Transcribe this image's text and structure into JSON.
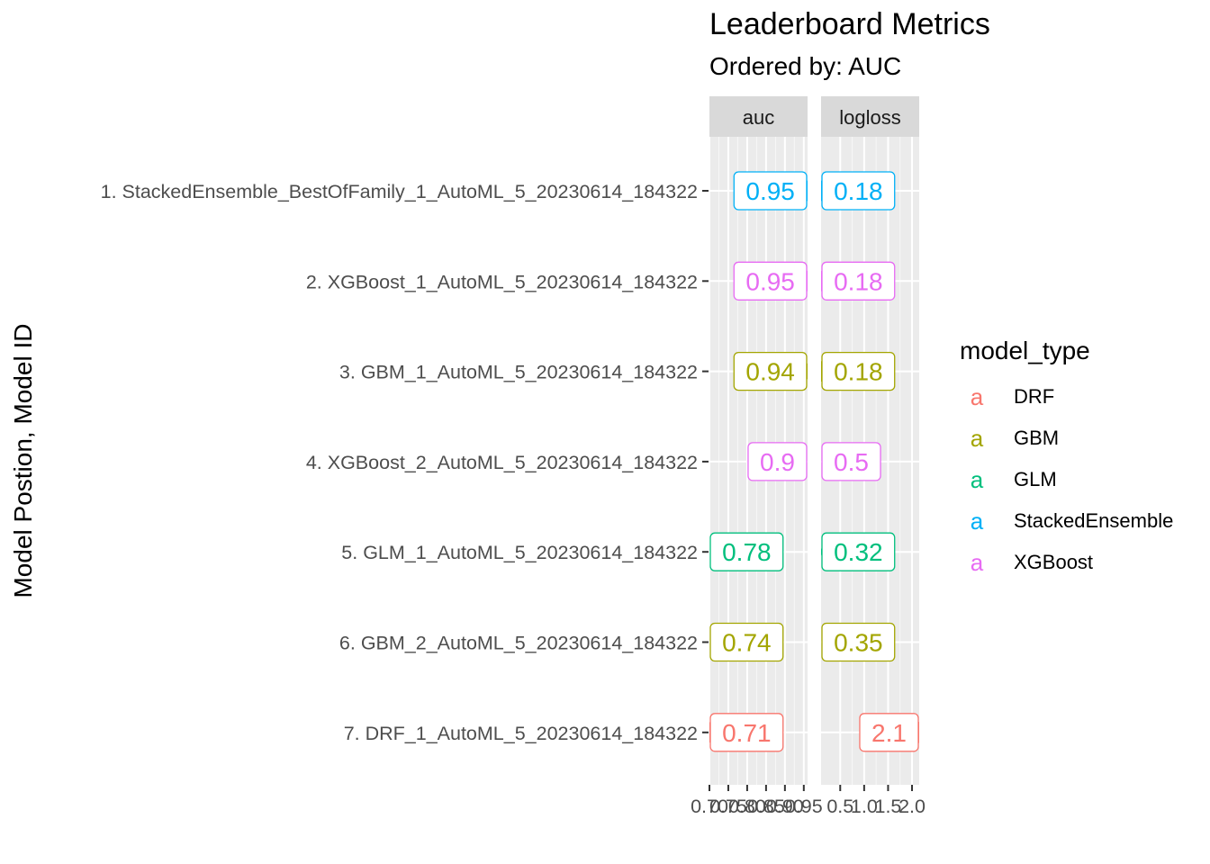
{
  "title": "Leaderboard Metrics",
  "subtitle": "Ordered by: AUC",
  "ylabel": "Model Postion, Model ID",
  "legend": {
    "title": "model_type",
    "key_glyph": "a",
    "items": [
      {
        "label": "DRF",
        "color": "#F8766D"
      },
      {
        "label": "GBM",
        "color": "#A3A500"
      },
      {
        "label": "GLM",
        "color": "#00BF7D"
      },
      {
        "label": "StackedEnsemble",
        "color": "#00B0F6"
      },
      {
        "label": "XGBoost",
        "color": "#E76BF3"
      }
    ]
  },
  "chart_data": {
    "type": "lollipop",
    "facets": [
      {
        "name": "auc",
        "xlim": [
          0.7,
          0.96
        ],
        "ticks": [
          0.7,
          0.75,
          0.8,
          0.85,
          0.9,
          0.95
        ],
        "tick_labels": [
          "0.70",
          "0.75",
          "0.80",
          "0.85",
          "0.90",
          "0.95"
        ]
      },
      {
        "name": "logloss",
        "xlim": [
          0.1,
          2.15
        ],
        "ticks": [
          0.5,
          1.0,
          1.5,
          2.0
        ],
        "tick_labels": [
          "0.5",
          "1.0",
          "1.5",
          "2.0"
        ]
      }
    ],
    "models": [
      {
        "label": "1. StackedEnsemble_BestOfFamily_1_AutoML_5_20230614_184322",
        "type": "StackedEnsemble",
        "auc": 0.95,
        "auc_label": "0.95",
        "logloss": 0.18,
        "logloss_label": "0.18"
      },
      {
        "label": "2. XGBoost_1_AutoML_5_20230614_184322",
        "type": "XGBoost",
        "auc": 0.95,
        "auc_label": "0.95",
        "logloss": 0.18,
        "logloss_label": "0.18"
      },
      {
        "label": "3. GBM_1_AutoML_5_20230614_184322",
        "type": "GBM",
        "auc": 0.94,
        "auc_label": "0.94",
        "logloss": 0.18,
        "logloss_label": "0.18"
      },
      {
        "label": "4. XGBoost_2_AutoML_5_20230614_184322",
        "type": "XGBoost",
        "auc": 0.9,
        "auc_label": "0.9",
        "logloss": 0.5,
        "logloss_label": "0.5"
      },
      {
        "label": "5. GLM_1_AutoML_5_20230614_184322",
        "type": "GLM",
        "auc": 0.78,
        "auc_label": "0.78",
        "logloss": 0.32,
        "logloss_label": "0.32"
      },
      {
        "label": "6. GBM_2_AutoML_5_20230614_184322",
        "type": "GBM",
        "auc": 0.74,
        "auc_label": "0.74",
        "logloss": 0.35,
        "logloss_label": "0.35"
      },
      {
        "label": "7. DRF_1_AutoML_5_20230614_184322",
        "type": "DRF",
        "auc": 0.71,
        "auc_label": "0.71",
        "logloss": 2.1,
        "logloss_label": "2.1"
      }
    ],
    "colors": {
      "DRF": "#F8766D",
      "GBM": "#A3A500",
      "GLM": "#00BF7D",
      "StackedEnsemble": "#00B0F6",
      "XGBoost": "#E76BF3"
    },
    "grid": true,
    "legend_position": "right"
  }
}
